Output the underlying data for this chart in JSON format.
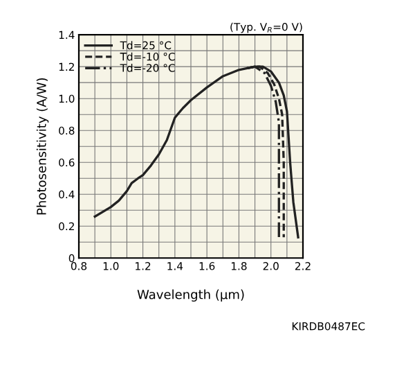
{
  "chart_data": {
    "type": "line",
    "xlabel": "Wavelength (µm)",
    "ylabel": "Photosensitivity (A/W)",
    "annotations": [
      "(Typ. V$_{R}$=0 V)",
      "KIRDB0487EC"
    ],
    "xlim": [
      0.8,
      2.2
    ],
    "ylim": [
      0,
      1.4
    ],
    "xticks": [
      0.8,
      {
        "value": 0.9,
        "label": null
      },
      {
        "value": 1.0,
        "label": "1.0"
      },
      {
        "value": 1.1,
        "label": null
      },
      1.2,
      {
        "value": 1.3,
        "label": null
      },
      1.4,
      {
        "value": 1.5,
        "label": null
      },
      1.6,
      {
        "value": 1.7,
        "label": null
      },
      1.8,
      {
        "value": 1.9,
        "label": null
      },
      {
        "value": 2.0,
        "label": "2.0"
      },
      {
        "value": 2.1,
        "label": null
      },
      2.2
    ],
    "yticks": [
      {
        "value": 0,
        "label": "0"
      },
      {
        "value": 0.1,
        "label": null
      },
      0.2,
      {
        "value": 0.3,
        "label": null
      },
      0.4,
      {
        "value": 0.5,
        "label": null
      },
      0.6,
      {
        "value": 0.7,
        "label": null
      },
      0.8,
      {
        "value": 0.9,
        "label": null
      },
      {
        "value": 1.0,
        "label": "1.0"
      },
      {
        "value": 1.1,
        "label": null
      },
      1.2,
      {
        "value": 1.3,
        "label": null
      },
      1.4
    ],
    "grid": true,
    "legend": "top left",
    "series": [
      {
        "name": "Td=25 °C",
        "color": "#222222",
        "line_style": "solid",
        "x": [
          0.9,
          1.0,
          1.05,
          1.1,
          1.13,
          1.17,
          1.2,
          1.25,
          1.3,
          1.35,
          1.4,
          1.45,
          1.5,
          1.6,
          1.7,
          1.8,
          1.9,
          1.95,
          2.0,
          2.05,
          2.08,
          2.1,
          2.12,
          2.14,
          2.17
        ],
        "values": [
          0.26,
          0.32,
          0.36,
          0.42,
          0.47,
          0.5,
          0.52,
          0.58,
          0.65,
          0.74,
          0.88,
          0.94,
          0.99,
          1.07,
          1.14,
          1.18,
          1.2,
          1.2,
          1.17,
          1.1,
          1.02,
          0.92,
          0.6,
          0.35,
          0.13
        ]
      },
      {
        "name": "Td=-10 °C",
        "color": "#222222",
        "line_style": "dashed",
        "x": [
          1.85,
          1.9,
          1.93,
          1.98,
          2.02,
          2.05,
          2.07,
          2.08,
          2.08
        ],
        "values": [
          1.19,
          1.2,
          1.2,
          1.16,
          1.09,
          1.0,
          0.9,
          0.6,
          0.13
        ]
      },
      {
        "name": "Td=-20 °C",
        "color": "#222222",
        "line_style": "dashdot",
        "x": [
          1.85,
          1.9,
          1.96,
          2.0,
          2.03,
          2.05,
          2.05
        ],
        "values": [
          1.19,
          1.2,
          1.16,
          1.08,
          0.98,
          0.85,
          0.13
        ]
      }
    ]
  }
}
